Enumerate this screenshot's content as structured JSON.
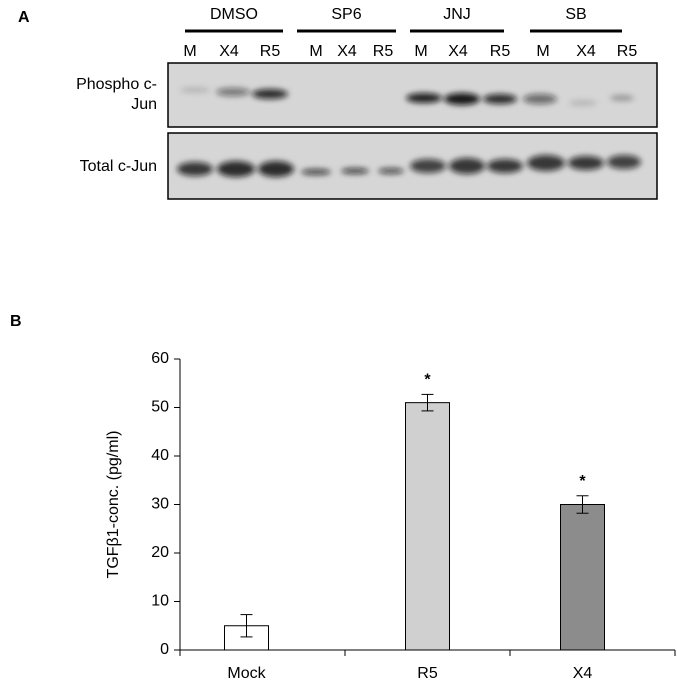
{
  "panel_a": {
    "label": "A",
    "groups": [
      {
        "name": "DMSO",
        "lanes": [
          "M",
          "X4",
          "R5"
        ]
      },
      {
        "name": "SP6",
        "lanes": [
          "M",
          "X4",
          "R5"
        ]
      },
      {
        "name": "JNJ",
        "lanes": [
          "M",
          "X4",
          "R5"
        ]
      },
      {
        "name": "SB",
        "lanes": [
          "M",
          "X4",
          "R5"
        ]
      }
    ],
    "row_labels": [
      [
        "Phospho c-",
        "Jun"
      ],
      [
        "Total c-Jun"
      ]
    ]
  },
  "chart_data": {
    "type": "bar",
    "panel_label": "B",
    "y_label": "TGFβ1-conc. (pg/ml)",
    "categories": [
      "Mock",
      "R5",
      "X4"
    ],
    "values": [
      5,
      51,
      30
    ],
    "errors": [
      2.3,
      1.7,
      1.8
    ],
    "colors": [
      "#ffffff",
      "#d0d0d0",
      "#8c8c8c"
    ],
    "annotations": [
      null,
      "*",
      "*"
    ],
    "ylim": [
      0,
      60
    ],
    "yticks": [
      0,
      10,
      20,
      30,
      40,
      50,
      60
    ]
  }
}
